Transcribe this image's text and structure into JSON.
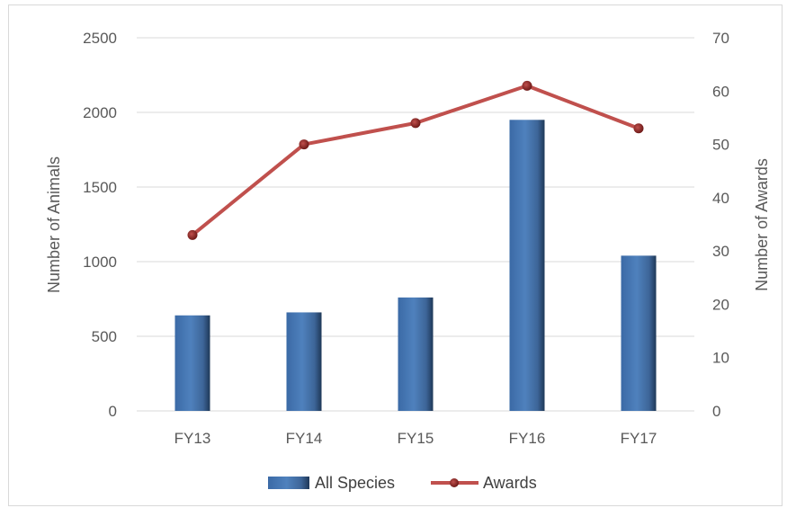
{
  "chart_data": {
    "type": "bar",
    "categories": [
      "FY13",
      "FY14",
      "FY15",
      "FY16",
      "FY17"
    ],
    "series": [
      {
        "name": "All Species",
        "type": "bar",
        "axis": "left",
        "values": [
          640,
          660,
          760,
          1950,
          1040
        ]
      },
      {
        "name": "Awards",
        "type": "line",
        "axis": "right",
        "values": [
          33,
          50,
          54,
          61,
          53
        ]
      }
    ],
    "ylabel": "Number of Animals",
    "y2label": "Number of Awards",
    "ylim": [
      0,
      2500
    ],
    "y2lim": [
      0,
      70
    ],
    "yticks": [
      "0",
      "500",
      "1000",
      "1500",
      "2000",
      "2500"
    ],
    "y2ticks": [
      "0",
      "10",
      "20",
      "30",
      "40",
      "50",
      "60",
      "70"
    ],
    "grid": true,
    "legend": "bottom",
    "colors": {
      "bar": "#4f81bd",
      "bar_dark": "#1f3a60",
      "line": "#c0504d",
      "marker": "#7f1f1d",
      "grid": "#d9d9d9"
    }
  }
}
